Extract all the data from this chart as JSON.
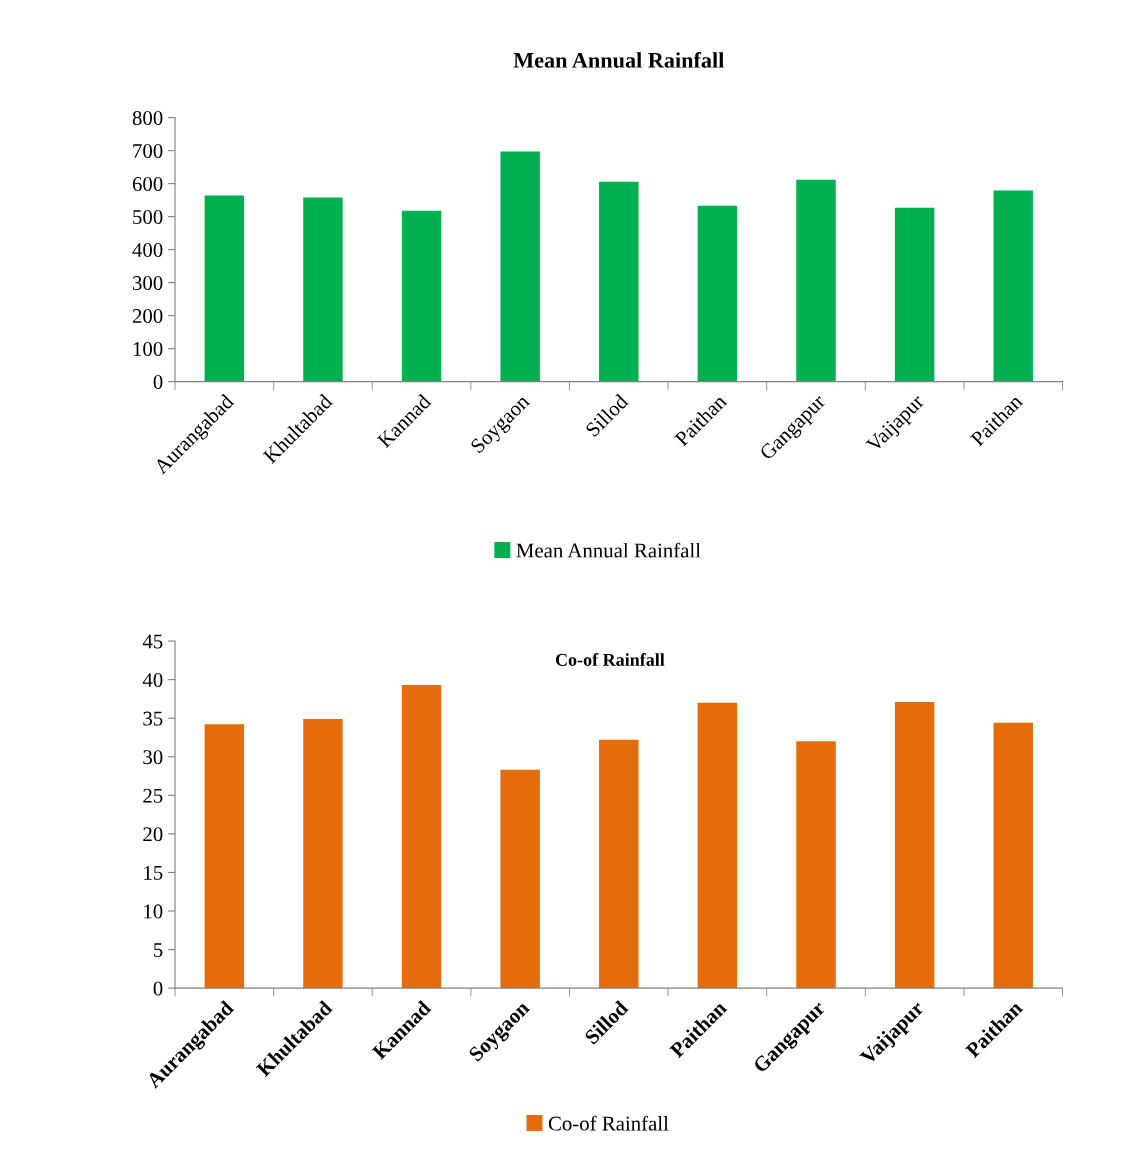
{
  "chart_data": [
    {
      "type": "bar",
      "title": "Mean Annual Rainfall",
      "categories": [
        "Aurangabad",
        "Khultabad",
        "Kannad",
        "Soygaon",
        "Sillod",
        "Paithan",
        "Gangapur",
        "Vaijapur",
        "Paithan"
      ],
      "series": [
        {
          "name": "Mean Annual Rainfall",
          "color": "#00b050",
          "values": [
            564,
            558,
            518,
            697,
            606,
            533,
            612,
            527,
            579
          ]
        }
      ],
      "ylim": [
        0,
        800
      ],
      "yticks": [
        0,
        100,
        200,
        300,
        400,
        500,
        600,
        700,
        800
      ],
      "grid": false,
      "legend": "bottom"
    },
    {
      "type": "bar",
      "title": "Co-of Rainfall",
      "categories": [
        "Aurangabad",
        "Khultabad",
        "Kannad",
        "Soygaon",
        "Sillod",
        "Paithan",
        "Gangapur",
        "Vaijapur",
        "Paithan"
      ],
      "series": [
        {
          "name": "Co-of Rainfall",
          "color": "#e46c0a",
          "values": [
            34.2,
            34.9,
            39.3,
            28.3,
            32.2,
            37.0,
            32.0,
            37.1,
            34.4
          ]
        }
      ],
      "ylim": [
        0,
        45
      ],
      "yticks": [
        0,
        5,
        10,
        15,
        20,
        25,
        30,
        35,
        40,
        45
      ],
      "grid": false,
      "legend": "bottom"
    }
  ]
}
